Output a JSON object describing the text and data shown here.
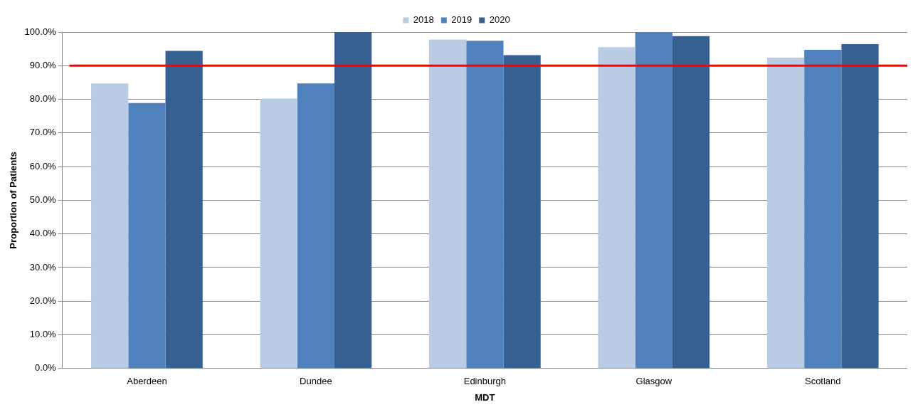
{
  "chart_data": {
    "type": "bar",
    "xlabel": "MDT",
    "ylabel": "Proportion of Patients",
    "categories": [
      "Aberdeen",
      "Dundee",
      "Edinburgh",
      "Glasgow",
      "Scotland"
    ],
    "series": [
      {
        "name": "2018",
        "color": "#b9cce4",
        "values": [
          84.7,
          80.2,
          97.8,
          95.5,
          92.4
        ]
      },
      {
        "name": "2019",
        "color": "#4f81bd",
        "values": [
          78.9,
          84.7,
          97.4,
          100,
          94.7
        ]
      },
      {
        "name": "2020",
        "color": "#366092",
        "values": [
          94.4,
          100,
          93.1,
          98.8,
          96.4
        ]
      }
    ],
    "ylim": [
      0,
      100
    ],
    "yticks": [
      {
        "value": 0,
        "label": "0.0%"
      },
      {
        "value": 10,
        "label": "10.0%"
      },
      {
        "value": 20,
        "label": "20.0%"
      },
      {
        "value": 30,
        "label": "30.0%"
      },
      {
        "value": 40,
        "label": "40.0%"
      },
      {
        "value": 50,
        "label": "50.0%"
      },
      {
        "value": 60,
        "label": "60.0%"
      },
      {
        "value": 70,
        "label": "70.0%"
      },
      {
        "value": 80,
        "label": "80.0%"
      },
      {
        "value": 90,
        "label": "90.0%"
      },
      {
        "value": 100,
        "label": "100.0%"
      }
    ],
    "ref_lines": [
      {
        "axis": "y",
        "value": 90,
        "color": "#ff0000"
      }
    ],
    "grid": "y",
    "legend": "top"
  }
}
